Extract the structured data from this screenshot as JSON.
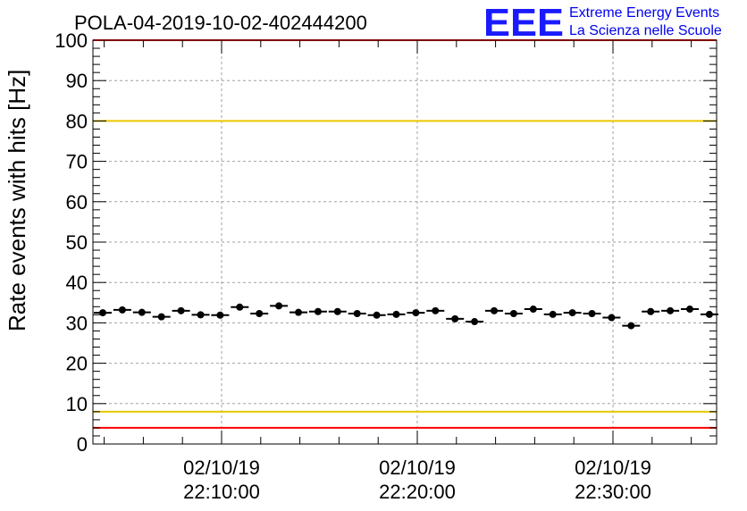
{
  "chart_data": {
    "type": "scatter",
    "title": "POLA-04-2019-10-02-402444200",
    "ylabel": "Rate events with hits [Hz]",
    "xlabel": "",
    "ylim": [
      0,
      100
    ],
    "yticks": [
      0,
      10,
      20,
      30,
      40,
      50,
      60,
      70,
      80,
      90,
      100
    ],
    "x_tick_labels": [
      {
        "date": "02/10/19",
        "time": "22:10:00"
      },
      {
        "date": "02/10/19",
        "time": "22:20:00"
      },
      {
        "date": "02/10/19",
        "time": "22:30:00"
      }
    ],
    "grid": true,
    "reference_lines": [
      {
        "y": 100,
        "color": "#ff0000"
      },
      {
        "y": 80,
        "color": "#e6c800"
      },
      {
        "y": 8,
        "color": "#e6c800"
      },
      {
        "y": 4,
        "color": "#ff0000"
      }
    ],
    "series": [
      {
        "values": [
          32.5,
          33.2,
          32.6,
          31.5,
          33.0,
          32.0,
          31.9,
          33.9,
          32.3,
          34.2,
          32.6,
          32.8,
          32.8,
          32.3,
          31.9,
          32.1,
          32.5,
          33.0,
          31.0,
          30.3,
          33.0,
          32.3,
          33.4,
          32.1,
          32.5,
          32.3,
          31.3,
          29.3,
          32.8,
          33.0,
          33.4,
          32.1
        ]
      }
    ],
    "marker_color": "#000000"
  },
  "logo": {
    "letters": "EEE",
    "line1": "Extreme Energy Events",
    "line2": "La Scienza nelle Scuole"
  }
}
